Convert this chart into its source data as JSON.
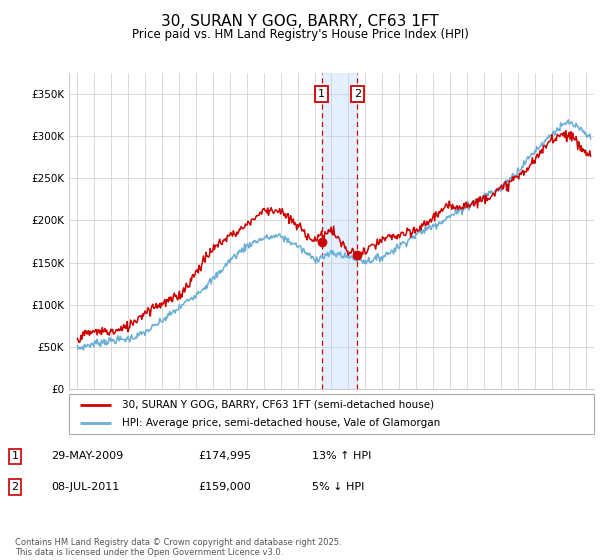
{
  "title": "30, SURAN Y GOG, BARRY, CF63 1FT",
  "subtitle": "Price paid vs. HM Land Registry's House Price Index (HPI)",
  "ylabel_ticks": [
    "£0",
    "£50K",
    "£100K",
    "£150K",
    "£200K",
    "£250K",
    "£300K",
    "£350K"
  ],
  "ytick_values": [
    0,
    50000,
    100000,
    150000,
    200000,
    250000,
    300000,
    350000
  ],
  "ylim": [
    0,
    375000
  ],
  "xlim_start": 1994.5,
  "xlim_end": 2025.5,
  "sale1_date": 2009.41,
  "sale1_price": 174995,
  "sale1_label": "1",
  "sale2_date": 2011.52,
  "sale2_price": 159000,
  "sale2_label": "2",
  "sale1_row": "29-MAY-2009",
  "sale1_amount": "£174,995",
  "sale1_pct": "13% ↑ HPI",
  "sale2_row": "08-JUL-2011",
  "sale2_amount": "£159,000",
  "sale2_pct": "5% ↓ HPI",
  "legend_line1": "30, SURAN Y GOG, BARRY, CF63 1FT (semi-detached house)",
  "legend_line2": "HPI: Average price, semi-detached house, Vale of Glamorgan",
  "footer": "Contains HM Land Registry data © Crown copyright and database right 2025.\nThis data is licensed under the Open Government Licence v3.0.",
  "hpi_color": "#6baed6",
  "price_color": "#cc0000",
  "background_color": "#ffffff",
  "grid_color": "#cccccc",
  "shade_color": "#ddeeff"
}
